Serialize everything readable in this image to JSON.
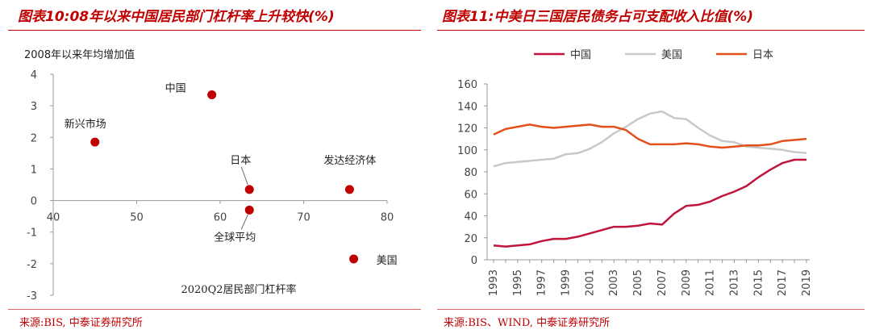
{
  "left": {
    "title": "图表10:08年以来中国居民部门杠杆率上升较快(%)",
    "source": "来源:BIS, 中泰证券研究所",
    "chart_data": {
      "type": "scatter",
      "ylabel": "2008年以来年均增加值",
      "xlabel": "2020Q2居民部门杠杆率",
      "xlim": [
        40,
        80
      ],
      "ylim": [
        -3,
        4
      ],
      "xticks": [
        "40",
        "50",
        "60",
        "70",
        "80"
      ],
      "yticks": [
        "4",
        "3",
        "2",
        "1",
        "0",
        "-1",
        "-2",
        "-3"
      ],
      "points": [
        {
          "label": "中国",
          "x": 59.0,
          "y": 3.35
        },
        {
          "label": "新兴市场",
          "x": 45.0,
          "y": 1.85
        },
        {
          "label": "日本",
          "x": 63.5,
          "y": 0.35
        },
        {
          "label": "发达经济体",
          "x": 75.5,
          "y": 0.35
        },
        {
          "label": "全球平均",
          "x": 63.5,
          "y": -0.3
        },
        {
          "label": "美国",
          "x": 76.0,
          "y": -1.85
        }
      ],
      "point_color": "#c00000"
    }
  },
  "right": {
    "title": "图表11:中美日三国居民债务占可支配收入比值(%)",
    "source": "来源:BIS、WIND, 中泰证券研究所",
    "chart_data": {
      "type": "line",
      "ylim": [
        0,
        160
      ],
      "yticks": [
        "0",
        "20",
        "40",
        "60",
        "80",
        "100",
        "120",
        "140",
        "160"
      ],
      "x": [
        1993,
        1994,
        1995,
        1996,
        1997,
        1998,
        1999,
        2000,
        2001,
        2002,
        2003,
        2004,
        2005,
        2006,
        2007,
        2008,
        2009,
        2010,
        2011,
        2012,
        2013,
        2014,
        2015,
        2016,
        2017,
        2018,
        2019
      ],
      "xticks": [
        "1993",
        "1995",
        "1997",
        "1999",
        "2001",
        "2003",
        "2005",
        "2007",
        "2009",
        "2011",
        "2013",
        "2015",
        "2017",
        "2019"
      ],
      "series": [
        {
          "name": "中国",
          "color": "#c0143c",
          "values": [
            13,
            12,
            13,
            14,
            17,
            19,
            19,
            21,
            24,
            27,
            30,
            30,
            31,
            33,
            32,
            42,
            49,
            50,
            53,
            58,
            62,
            67,
            75,
            82,
            88,
            91,
            91
          ]
        },
        {
          "name": "美国",
          "color": "#c8c8c8",
          "values": [
            85,
            88,
            89,
            90,
            91,
            92,
            96,
            97,
            101,
            107,
            115,
            121,
            128,
            133,
            135,
            129,
            128,
            120,
            113,
            108,
            107,
            103,
            102,
            101,
            100,
            98,
            97
          ]
        },
        {
          "name": "日本",
          "color": "#e2501c",
          "values": [
            114,
            119,
            121,
            123,
            121,
            120,
            121,
            122,
            123,
            121,
            121,
            118,
            110,
            105,
            105,
            105,
            106,
            105,
            103,
            102,
            103,
            104,
            104,
            105,
            108,
            109,
            110
          ]
        }
      ]
    }
  }
}
